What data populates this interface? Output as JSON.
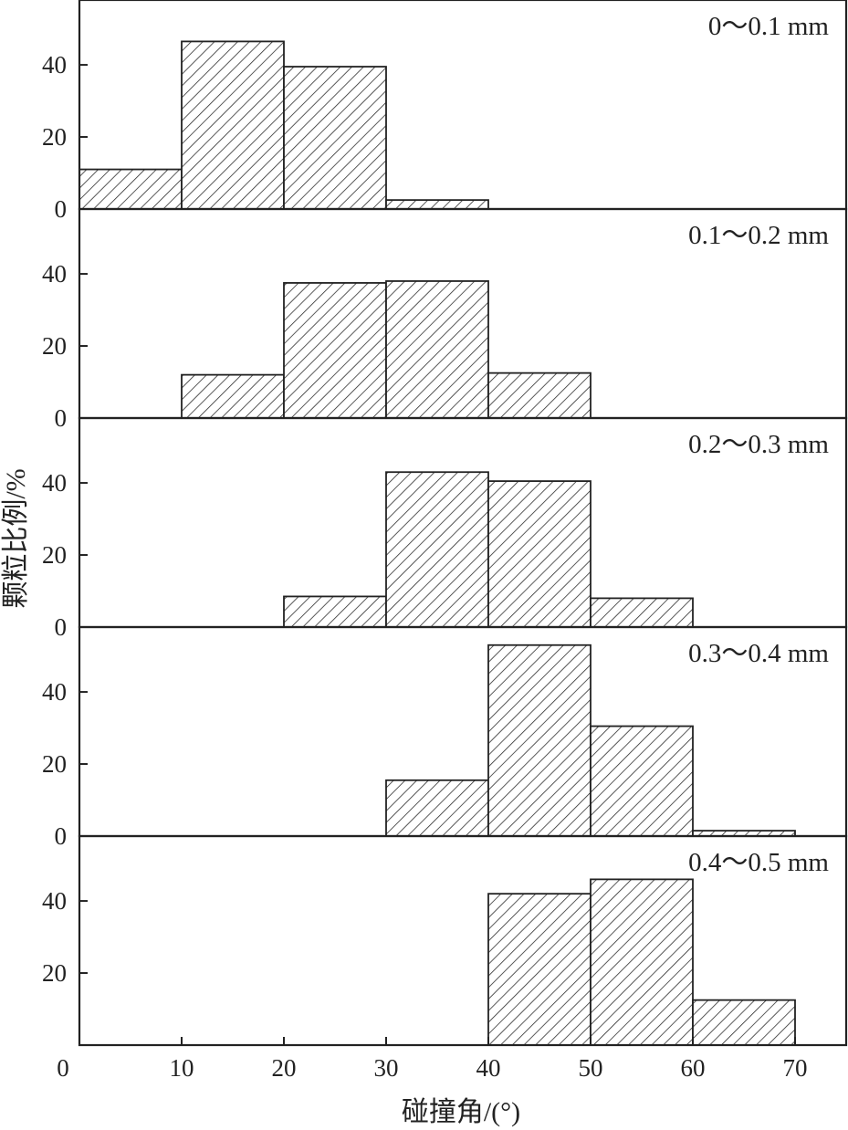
{
  "chart_data": {
    "type": "bar",
    "xlabel": "碰撞角/(°)",
    "ylabel": "颗粒比例/%",
    "xlim": [
      0,
      75
    ],
    "x_ticks": [
      0,
      10,
      20,
      30,
      40,
      50,
      60,
      70
    ],
    "bin_width": 10,
    "fill": "diagonal hatch",
    "colors": {
      "stroke": "#222222",
      "background": "#ffffff"
    },
    "panels": [
      {
        "label": "0～0.1 mm",
        "ylim": [
          0,
          58
        ],
        "y_ticks": [
          0,
          20,
          40
        ],
        "bins": [
          {
            "x": 0,
            "value": 11
          },
          {
            "x": 10,
            "value": 46.5
          },
          {
            "x": 20,
            "value": 39.5
          },
          {
            "x": 30,
            "value": 2.5
          }
        ]
      },
      {
        "label": "0.1～0.2 mm",
        "ylim": [
          0,
          58
        ],
        "y_ticks": [
          0,
          20,
          40
        ],
        "bins": [
          {
            "x": 10,
            "value": 12
          },
          {
            "x": 20,
            "value": 37.5
          },
          {
            "x": 30,
            "value": 38
          },
          {
            "x": 40,
            "value": 12.5
          }
        ]
      },
      {
        "label": "0.2～0.3 mm",
        "ylim": [
          0,
          58
        ],
        "y_ticks": [
          0,
          20,
          40
        ],
        "bins": [
          {
            "x": 20,
            "value": 8.5
          },
          {
            "x": 30,
            "value": 43
          },
          {
            "x": 40,
            "value": 40.5
          },
          {
            "x": 50,
            "value": 8
          }
        ]
      },
      {
        "label": "0.3～0.4 mm",
        "ylim": [
          0,
          58
        ],
        "y_ticks": [
          0,
          20,
          40
        ],
        "bins": [
          {
            "x": 30,
            "value": 15.5
          },
          {
            "x": 40,
            "value": 53
          },
          {
            "x": 50,
            "value": 30.5
          },
          {
            "x": 60,
            "value": 1.5
          }
        ]
      },
      {
        "label": "0.4～0.5 mm",
        "ylim": [
          0,
          58
        ],
        "y_ticks": [
          20,
          40
        ],
        "bins": [
          {
            "x": 40,
            "value": 42
          },
          {
            "x": 50,
            "value": 46
          },
          {
            "x": 60,
            "value": 12.5
          }
        ]
      }
    ]
  }
}
